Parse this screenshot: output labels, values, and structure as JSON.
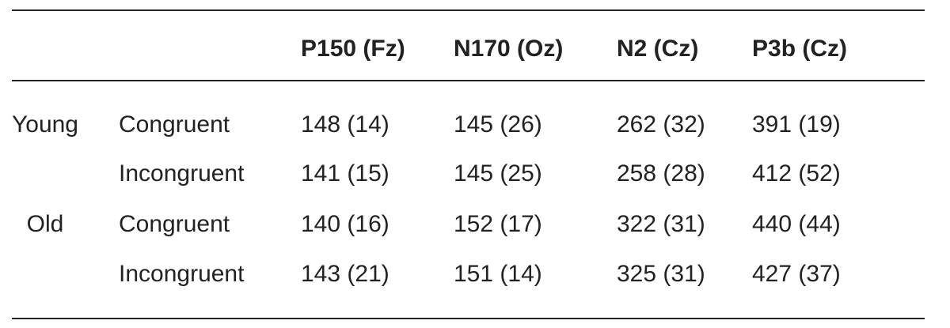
{
  "table": {
    "headers": [
      "P150 (Fz)",
      "N170 (Oz)",
      "N2 (Cz)",
      "P3b (Cz)"
    ],
    "groups": [
      {
        "label": "Young",
        "rows": [
          {
            "condition": "Congruent",
            "cells": [
              "148 (14)",
              "145 (26)",
              "262 (32)",
              "391 (19)"
            ]
          },
          {
            "condition": "Incongruent",
            "cells": [
              "141 (15)",
              "145 (25)",
              "258 (28)",
              "412 (52)"
            ]
          }
        ]
      },
      {
        "label": "Old",
        "rows": [
          {
            "condition": "Congruent",
            "cells": [
              "140 (16)",
              "152 (17)",
              "322 (31)",
              "440 (44)"
            ]
          },
          {
            "condition": "Incongruent",
            "cells": [
              "143 (21)",
              "151 (14)",
              "325 (31)",
              "427 (37)"
            ]
          }
        ]
      }
    ]
  }
}
